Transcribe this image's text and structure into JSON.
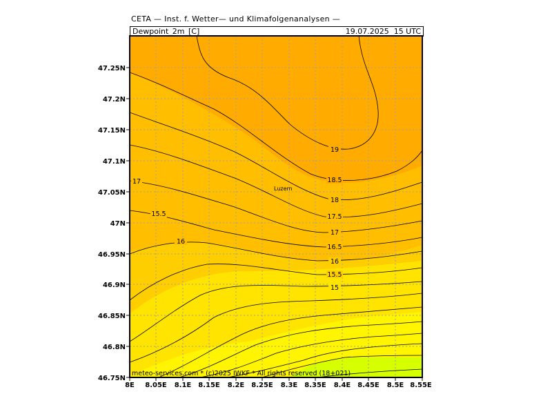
{
  "header": {
    "title": "CETA — Inst. f. Wetter— und Klimafolgenanalysen —",
    "variable": "Dewpoint_2m_[C]",
    "datetime": "19.07.2025  15 UTC"
  },
  "axes": {
    "x_ticks": [
      "8E",
      "8.05E",
      "8.1E",
      "8.15E",
      "8.2E",
      "8.25E",
      "8.3E",
      "8.35E",
      "8.4E",
      "8.45E",
      "8.5E",
      "8.55E"
    ],
    "y_ticks": [
      "47.25N",
      "47.2N",
      "47.15N",
      "47.1N",
      "47.05N",
      "47N",
      "46.95N",
      "46.9N",
      "46.85N",
      "46.8N",
      "46.75N"
    ]
  },
  "contour_labels": [
    "19",
    "18.5",
    "18",
    "17.5",
    "17",
    "16.5",
    "16",
    "15.5",
    "15",
    "17",
    "16.5",
    "16",
    "15.5"
  ],
  "places": [
    "Luzern"
  ],
  "footer": "meteo-services.com * (c)2025 IWKF * All rights reserved (18+021)",
  "colors": {
    "dark_orange": "#ffab00",
    "orange": "#ffbf00",
    "amber": "#ffd000",
    "yellow": "#ffe400",
    "bright_yellow": "#fff500",
    "lime": "#d6ff00",
    "grid": "#a0a0a0"
  }
}
